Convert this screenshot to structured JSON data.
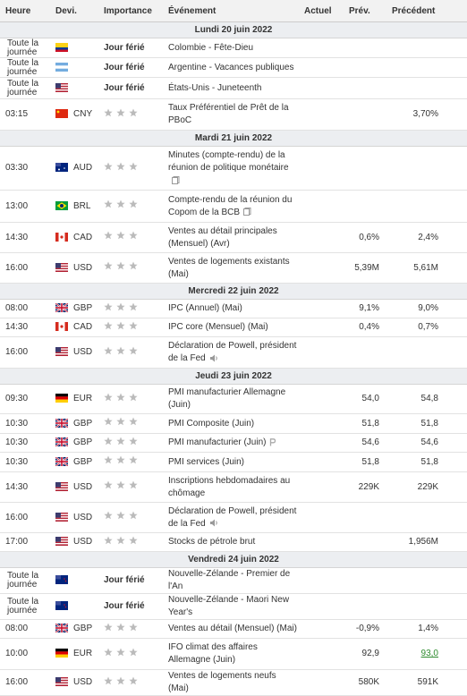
{
  "columns": [
    "Heure",
    "Devi.",
    "Importance",
    "Événement",
    "Actuel",
    "Prév.",
    "Précédent"
  ],
  "days": [
    {
      "date": "Lundi 20 juin 2022",
      "rows": [
        {
          "time": "Toute la journée",
          "flag": "CO",
          "importance": "Jour férié",
          "event": "Colombie - Fête-Dieu"
        },
        {
          "time": "Toute la journée",
          "flag": "AR",
          "importance": "Jour férié",
          "event": "Argentine - Vacances publiques"
        },
        {
          "time": "Toute la journée",
          "flag": "US",
          "importance": "Jour férié",
          "event": "États-Unis - Juneteenth"
        },
        {
          "time": "03:15",
          "flag": "CN",
          "currency": "CNY",
          "event": "Taux Préférentiel de Prêt de la PBoC",
          "previous": "3,70%"
        }
      ]
    },
    {
      "date": "Mardi 21 juin 2022",
      "rows": [
        {
          "time": "03:30",
          "flag": "AU",
          "currency": "AUD",
          "event": "Minutes (compte-rendu) de la réunion de politique monétaire",
          "icon": "doc"
        },
        {
          "time": "13:00",
          "flag": "BR",
          "currency": "BRL",
          "event": "Compte-rendu de la réunion du Copom de la BCB",
          "icon": "doc"
        },
        {
          "time": "14:30",
          "flag": "CA",
          "currency": "CAD",
          "event": "Ventes au détail principales (Mensuel) (Avr)",
          "forecast": "0,6%",
          "previous": "2,4%"
        },
        {
          "time": "16:00",
          "flag": "US",
          "currency": "USD",
          "event": "Ventes de logements existants (Mai)",
          "forecast": "5,39M",
          "previous": "5,61M"
        }
      ]
    },
    {
      "date": "Mercredi 22 juin 2022",
      "rows": [
        {
          "time": "08:00",
          "flag": "GB",
          "currency": "GBP",
          "event": "IPC (Annuel) (Mai)",
          "forecast": "9,1%",
          "previous": "9,0%"
        },
        {
          "time": "14:30",
          "flag": "CA",
          "currency": "CAD",
          "event": "IPC core (Mensuel) (Mai)",
          "forecast": "0,4%",
          "previous": "0,7%"
        },
        {
          "time": "16:00",
          "flag": "US",
          "currency": "USD",
          "event": "Déclaration de Powell, président de la Fed",
          "icon": "speaker"
        }
      ]
    },
    {
      "date": "Jeudi 23 juin 2022",
      "rows": [
        {
          "time": "09:30",
          "flag": "DE",
          "currency": "EUR",
          "event": "PMI manufacturier Allemagne (Juin)",
          "forecast": "54,0",
          "previous": "54,8"
        },
        {
          "time": "10:30",
          "flag": "GB",
          "currency": "GBP",
          "event": "PMI Composite (Juin)",
          "forecast": "51,8",
          "previous": "51,8"
        },
        {
          "time": "10:30",
          "flag": "GB",
          "currency": "GBP",
          "event": "PMI manufacturier (Juin)",
          "icon": "p",
          "forecast": "54,6",
          "previous": "54,6"
        },
        {
          "time": "10:30",
          "flag": "GB",
          "currency": "GBP",
          "event": "PMI services (Juin)",
          "forecast": "51,8",
          "previous": "51,8"
        },
        {
          "time": "14:30",
          "flag": "US",
          "currency": "USD",
          "event": "Inscriptions hebdomadaires au chômage",
          "forecast": "229K",
          "previous": "229K"
        },
        {
          "time": "16:00",
          "flag": "US",
          "currency": "USD",
          "event": "Déclaration de Powell, président de la Fed",
          "icon": "speaker"
        },
        {
          "time": "17:00",
          "flag": "US",
          "currency": "USD",
          "event": "Stocks de pétrole brut",
          "previous": "1,956M"
        }
      ]
    },
    {
      "date": "Vendredi 24 juin 2022",
      "rows": [
        {
          "time": "Toute la journée",
          "flag": "NZ",
          "importance": "Jour férié",
          "event": "Nouvelle-Zélande - Premier de l'An"
        },
        {
          "time": "Toute la journée",
          "flag": "NZ",
          "importance": "Jour férié",
          "event": "Nouvelle-Zélande - Maori New Year's"
        },
        {
          "time": "08:00",
          "flag": "GB",
          "currency": "GBP",
          "event": "Ventes au détail (Mensuel) (Mai)",
          "forecast": "-0,9%",
          "previous": "1,4%"
        },
        {
          "time": "10:00",
          "flag": "DE",
          "currency": "EUR",
          "event": "IFO climat des affaires Allemagne (Juin)",
          "forecast": "92,9",
          "previous": "93,0",
          "previous_color": "#2e8b2e"
        },
        {
          "time": "16:00",
          "flag": "US",
          "currency": "USD",
          "event": "Ventes de logements neufs (Mai)",
          "forecast": "580K",
          "previous": "591K"
        }
      ]
    }
  ]
}
